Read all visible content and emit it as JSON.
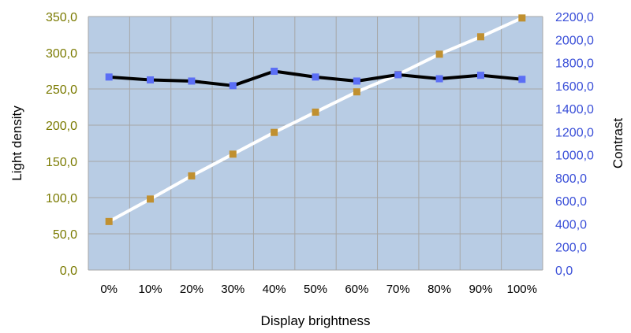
{
  "chart_data": {
    "type": "line",
    "categories": [
      "0%",
      "10%",
      "20%",
      "30%",
      "40%",
      "50%",
      "60%",
      "70%",
      "80%",
      "90%",
      "100%"
    ],
    "xlabel": "Display brightness",
    "ylabel_left": "Light density",
    "ylabel_right": "Contrast",
    "ylim_left": [
      0,
      350
    ],
    "ylim_right": [
      0,
      2200
    ],
    "left_ticks": [
      "0,0",
      "50,0",
      "100,0",
      "150,0",
      "200,0",
      "250,0",
      "300,0",
      "350,0"
    ],
    "right_ticks": [
      "0,0",
      "200,0",
      "400,0",
      "600,0",
      "800,0",
      "1000,0",
      "1200,0",
      "1400,0",
      "1600,0",
      "1800,0",
      "2000,0",
      "2200,0"
    ],
    "grid": true,
    "series": [
      {
        "axis": "left",
        "values": [
          67,
          98,
          130,
          160,
          190,
          218,
          246,
          270,
          298,
          322,
          348
        ],
        "line_color": "#ffffff",
        "marker_color": "#c09030"
      },
      {
        "axis": "right",
        "values": [
          1675,
          1650,
          1640,
          1600,
          1725,
          1675,
          1640,
          1695,
          1660,
          1690,
          1655
        ],
        "line_color": "#000000",
        "marker_color": "#5b6ef5"
      }
    ],
    "colors": {
      "plot_bg": "#b8cce4",
      "grid": "#a6a6a6",
      "left_tick_text": "#7a7a00",
      "right_tick_text": "#3a4fd8"
    }
  }
}
